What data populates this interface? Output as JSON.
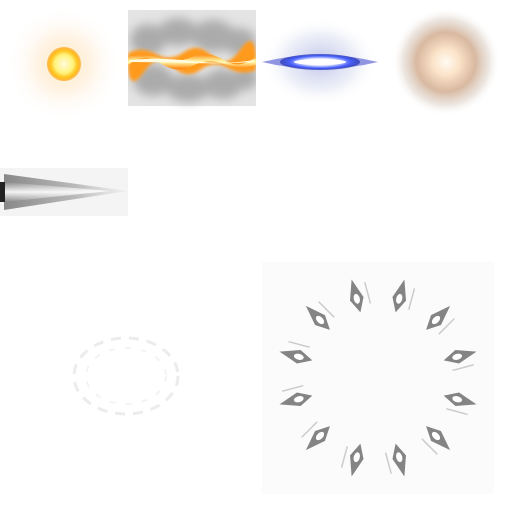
{
  "sheet": {
    "background": "#ffffff",
    "sprites": [
      {
        "name": "glow-orb-sprite",
        "colors": {
          "core": "#fff7b0",
          "mid": "#ffb300",
          "halo": "#ffd9a8"
        }
      },
      {
        "name": "fire-beam-sprite",
        "colors": {
          "core": "#fff2a0",
          "mid": "#ff9a1a",
          "smoke": "#9a9a9a"
        }
      },
      {
        "name": "blue-flash-sprite",
        "colors": {
          "core": "#ffffff",
          "mid": "#3a55ff",
          "halo": "#c8cde8"
        }
      },
      {
        "name": "soft-orb-sprite",
        "colors": {
          "core": "#fff4e8",
          "mid": "#f0c8a0",
          "halo": "#c8a890"
        }
      },
      {
        "name": "spike-trail-sprite",
        "colors": {
          "core": "#ffffff",
          "edge": "#555555"
        }
      },
      {
        "name": "faint-ring-sprite",
        "colors": {
          "line": "#eeeeee"
        }
      },
      {
        "name": "spiked-ring-sprite",
        "colors": {
          "blade": "#666666",
          "glint": "#cccccc"
        },
        "blade_count": 12
      }
    ]
  }
}
